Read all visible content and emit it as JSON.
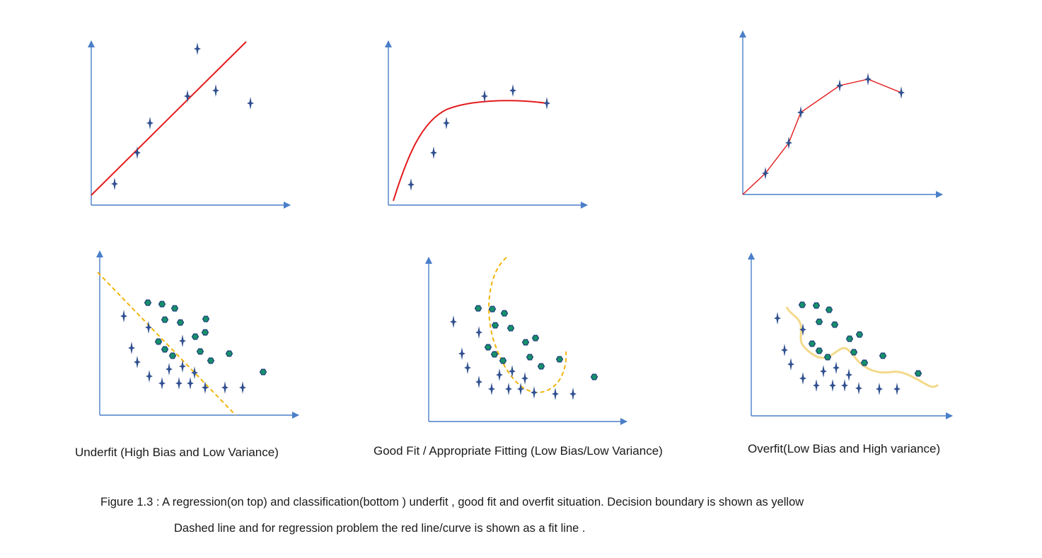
{
  "colors": {
    "axis": "#4a7fc9",
    "plus_marker": "#2f4f8f",
    "fit_line": "#e31a1c",
    "hex_marker_fill": "#17906a",
    "hex_marker_stroke": "#1c3e7a",
    "boundary": "#f2b40c",
    "boundary_wavy": "#f3d98a"
  },
  "panels": [
    {
      "id": "underfit-regression",
      "label": "",
      "fit": "straight red line",
      "markers": "plus"
    },
    {
      "id": "goodfit-regression",
      "label": "",
      "fit": "smooth red curve",
      "markers": "plus"
    },
    {
      "id": "overfit-regression",
      "label": "",
      "fit": "red polyline through every point",
      "markers": "plus"
    },
    {
      "id": "underfit-classification",
      "label": "Underfit (High Bias and  Low Variance)",
      "boundary": "straight yellow dashed line",
      "markers": "plus and hexagon"
    },
    {
      "id": "goodfit-classification",
      "label": "Good Fit / Appropriate Fitting (Low Bias/Low Variance)",
      "boundary": "curved yellow dashed line",
      "markers": "plus and hexagon"
    },
    {
      "id": "overfit-classification",
      "label": "Overfit(Low Bias and High variance)",
      "boundary": "wavy yellow line",
      "markers": "plus and hexagon"
    }
  ],
  "caption": {
    "line1": "Figure 1.3 :   A regression(on top) and classification(bottom )  underfit , good fit and overfit situation. Decision boundary is shown as yellow",
    "line2": "Dashed line and for regression problem the red line/curve is shown as a fit line ."
  }
}
